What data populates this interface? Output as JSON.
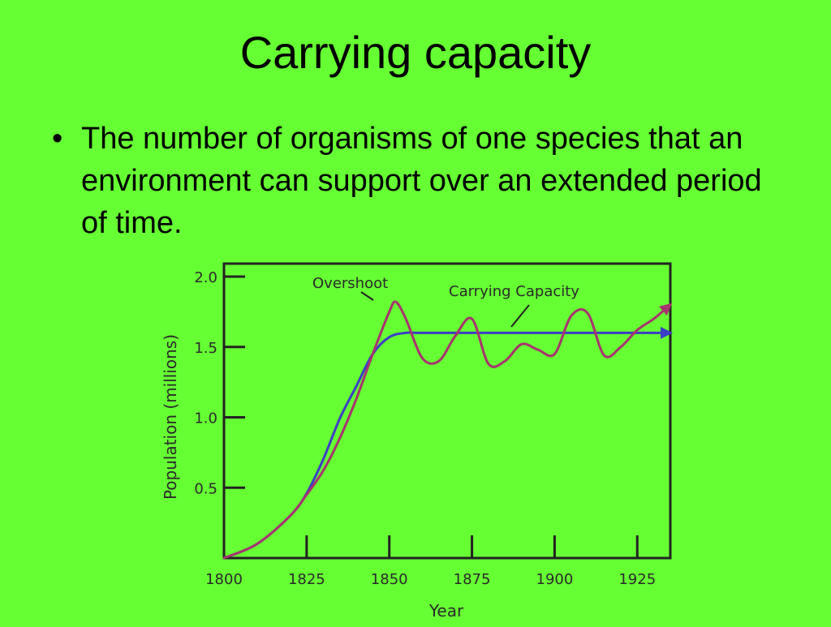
{
  "slide": {
    "title": "Carrying capacity",
    "bullet_symbol": "•",
    "bullet_text": "The number of organisms of one species that an environment can support over an extended period of time."
  },
  "colors": {
    "background": "#66ff33",
    "actual_population_line": "#a8336e",
    "carrying_capacity_line": "#3b3fc4"
  },
  "chart_data": {
    "type": "line",
    "title": "",
    "xlabel": "Year",
    "ylabel": "Population (millions)",
    "xlim": [
      1800,
      1935
    ],
    "ylim": [
      0,
      2.0
    ],
    "x_ticks": [
      "1800",
      "1825",
      "1850",
      "1875",
      "1900",
      "1925"
    ],
    "y_ticks": [
      "2.0",
      "1.5",
      "1.0",
      "0.5"
    ],
    "annotations": [
      "Overshoot",
      "Carrying Capacity"
    ],
    "grid": false,
    "series": [
      {
        "color": "#a8336e",
        "x": [
          1800,
          1810,
          1820,
          1825,
          1830,
          1835,
          1840,
          1845,
          1850,
          1852,
          1855,
          1860,
          1865,
          1870,
          1875,
          1880,
          1885,
          1890,
          1895,
          1900,
          1905,
          1910,
          1915,
          1920,
          1925,
          1930,
          1935
        ],
        "y": [
          0.0,
          0.1,
          0.3,
          0.45,
          0.62,
          0.85,
          1.13,
          1.45,
          1.75,
          1.82,
          1.7,
          1.42,
          1.4,
          1.58,
          1.7,
          1.38,
          1.4,
          1.52,
          1.48,
          1.45,
          1.72,
          1.74,
          1.44,
          1.5,
          1.62,
          1.7,
          1.8
        ]
      },
      {
        "color": "#3b3fc4",
        "x": [
          1800,
          1810,
          1820,
          1825,
          1830,
          1835,
          1840,
          1845,
          1850,
          1855,
          1860,
          1880,
          1900,
          1920,
          1935
        ],
        "y": [
          0.0,
          0.1,
          0.3,
          0.46,
          0.7,
          0.99,
          1.22,
          1.45,
          1.57,
          1.6,
          1.6,
          1.6,
          1.6,
          1.6,
          1.6
        ]
      }
    ]
  }
}
